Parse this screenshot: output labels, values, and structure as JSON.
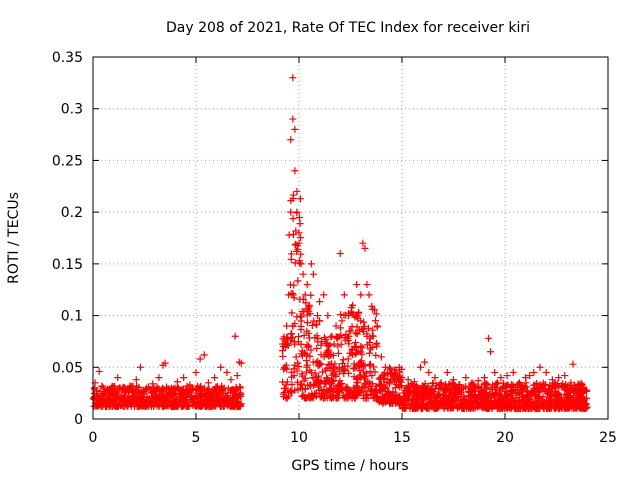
{
  "chart_data": {
    "type": "scatter",
    "title": "Day 208 of 2021, Rate Of TEC Index for receiver kiri",
    "xlabel": "GPS time / hours",
    "ylabel": "ROTI / TECUs",
    "xlim": [
      0,
      25
    ],
    "ylim": [
      0,
      0.35
    ],
    "xticks": [
      0,
      5,
      10,
      15,
      20,
      25
    ],
    "xtick_labels": [
      "0",
      "5",
      "10",
      "15",
      "20",
      "25"
    ],
    "yticks": [
      0,
      0.05,
      0.1,
      0.15,
      0.2,
      0.25,
      0.3,
      0.35
    ],
    "ytick_labels": [
      "0",
      "0.05",
      "0.1",
      "0.15",
      "0.2",
      "0.25",
      "0.3",
      "0.35"
    ],
    "grid": true,
    "marker": "+",
    "color": "#ff0000",
    "series": [
      {
        "name": "ROTI",
        "x": [
          0.1,
          0.3,
          0.6,
          0.9,
          1.2,
          1.5,
          1.8,
          2.1,
          2.3,
          2.6,
          2.9,
          3.2,
          3.4,
          3.5,
          3.8,
          4.1,
          4.4,
          4.7,
          5.0,
          5.2,
          5.4,
          5.6,
          5.9,
          6.2,
          6.5,
          6.7,
          6.9,
          7.0,
          7.1,
          7.2,
          9.3,
          9.4,
          9.5,
          9.6,
          9.6,
          9.7,
          9.7,
          9.8,
          9.8,
          9.9,
          9.9,
          10.0,
          10.0,
          10.1,
          10.2,
          10.3,
          10.4,
          10.5,
          10.6,
          10.7,
          10.9,
          11.0,
          11.2,
          11.4,
          11.6,
          11.8,
          12.0,
          12.2,
          12.4,
          12.6,
          12.8,
          13.0,
          13.1,
          13.2,
          13.3,
          13.4,
          13.6,
          13.8,
          14.0,
          14.2,
          14.5,
          14.8,
          15.0,
          15.3,
          15.6,
          15.9,
          16.1,
          16.3,
          16.6,
          16.9,
          17.2,
          17.5,
          17.8,
          18.1,
          18.4,
          18.7,
          19.0,
          19.2,
          19.3,
          19.5,
          19.8,
          20.1,
          20.4,
          20.7,
          21.0,
          21.2,
          21.4,
          21.7,
          22.0,
          22.3,
          22.6,
          22.9,
          23.2,
          23.3,
          23.6,
          23.9
        ],
        "y": [
          0.035,
          0.046,
          0.025,
          0.03,
          0.04,
          0.028,
          0.032,
          0.038,
          0.05,
          0.03,
          0.034,
          0.04,
          0.052,
          0.054,
          0.03,
          0.036,
          0.04,
          0.033,
          0.045,
          0.058,
          0.062,
          0.035,
          0.04,
          0.05,
          0.045,
          0.038,
          0.08,
          0.042,
          0.055,
          0.054,
          0.05,
          0.09,
          0.12,
          0.2,
          0.27,
          0.29,
          0.33,
          0.28,
          0.24,
          0.22,
          0.2,
          0.18,
          0.17,
          0.15,
          0.14,
          0.12,
          0.13,
          0.11,
          0.15,
          0.14,
          0.1,
          0.095,
          0.12,
          0.1,
          0.08,
          0.09,
          0.16,
          0.12,
          0.1,
          0.11,
          0.13,
          0.12,
          0.17,
          0.165,
          0.13,
          0.12,
          0.08,
          0.09,
          0.06,
          0.05,
          0.045,
          0.04,
          0.04,
          0.038,
          0.036,
          0.05,
          0.055,
          0.045,
          0.04,
          0.035,
          0.045,
          0.038,
          0.033,
          0.04,
          0.035,
          0.037,
          0.04,
          0.078,
          0.065,
          0.045,
          0.04,
          0.042,
          0.045,
          0.035,
          0.04,
          0.042,
          0.045,
          0.05,
          0.045,
          0.038,
          0.04,
          0.042,
          0.035,
          0.053,
          0.03,
          0.028
        ]
      }
    ],
    "segments": [
      {
        "start": 0.0,
        "end": 7.2,
        "base": 0.012,
        "top": 0.032
      },
      {
        "start": 9.2,
        "end": 9.5,
        "base": 0.02,
        "top": 0.08
      },
      {
        "start": 9.5,
        "end": 10.1,
        "base": 0.025,
        "top": 0.22
      },
      {
        "start": 10.1,
        "end": 11.0,
        "base": 0.02,
        "top": 0.12
      },
      {
        "start": 11.0,
        "end": 12.0,
        "base": 0.02,
        "top": 0.08
      },
      {
        "start": 12.0,
        "end": 13.8,
        "base": 0.02,
        "top": 0.11
      },
      {
        "start": 13.8,
        "end": 15.0,
        "base": 0.015,
        "top": 0.05
      },
      {
        "start": 15.0,
        "end": 24.0,
        "base": 0.01,
        "top": 0.035
      }
    ]
  }
}
